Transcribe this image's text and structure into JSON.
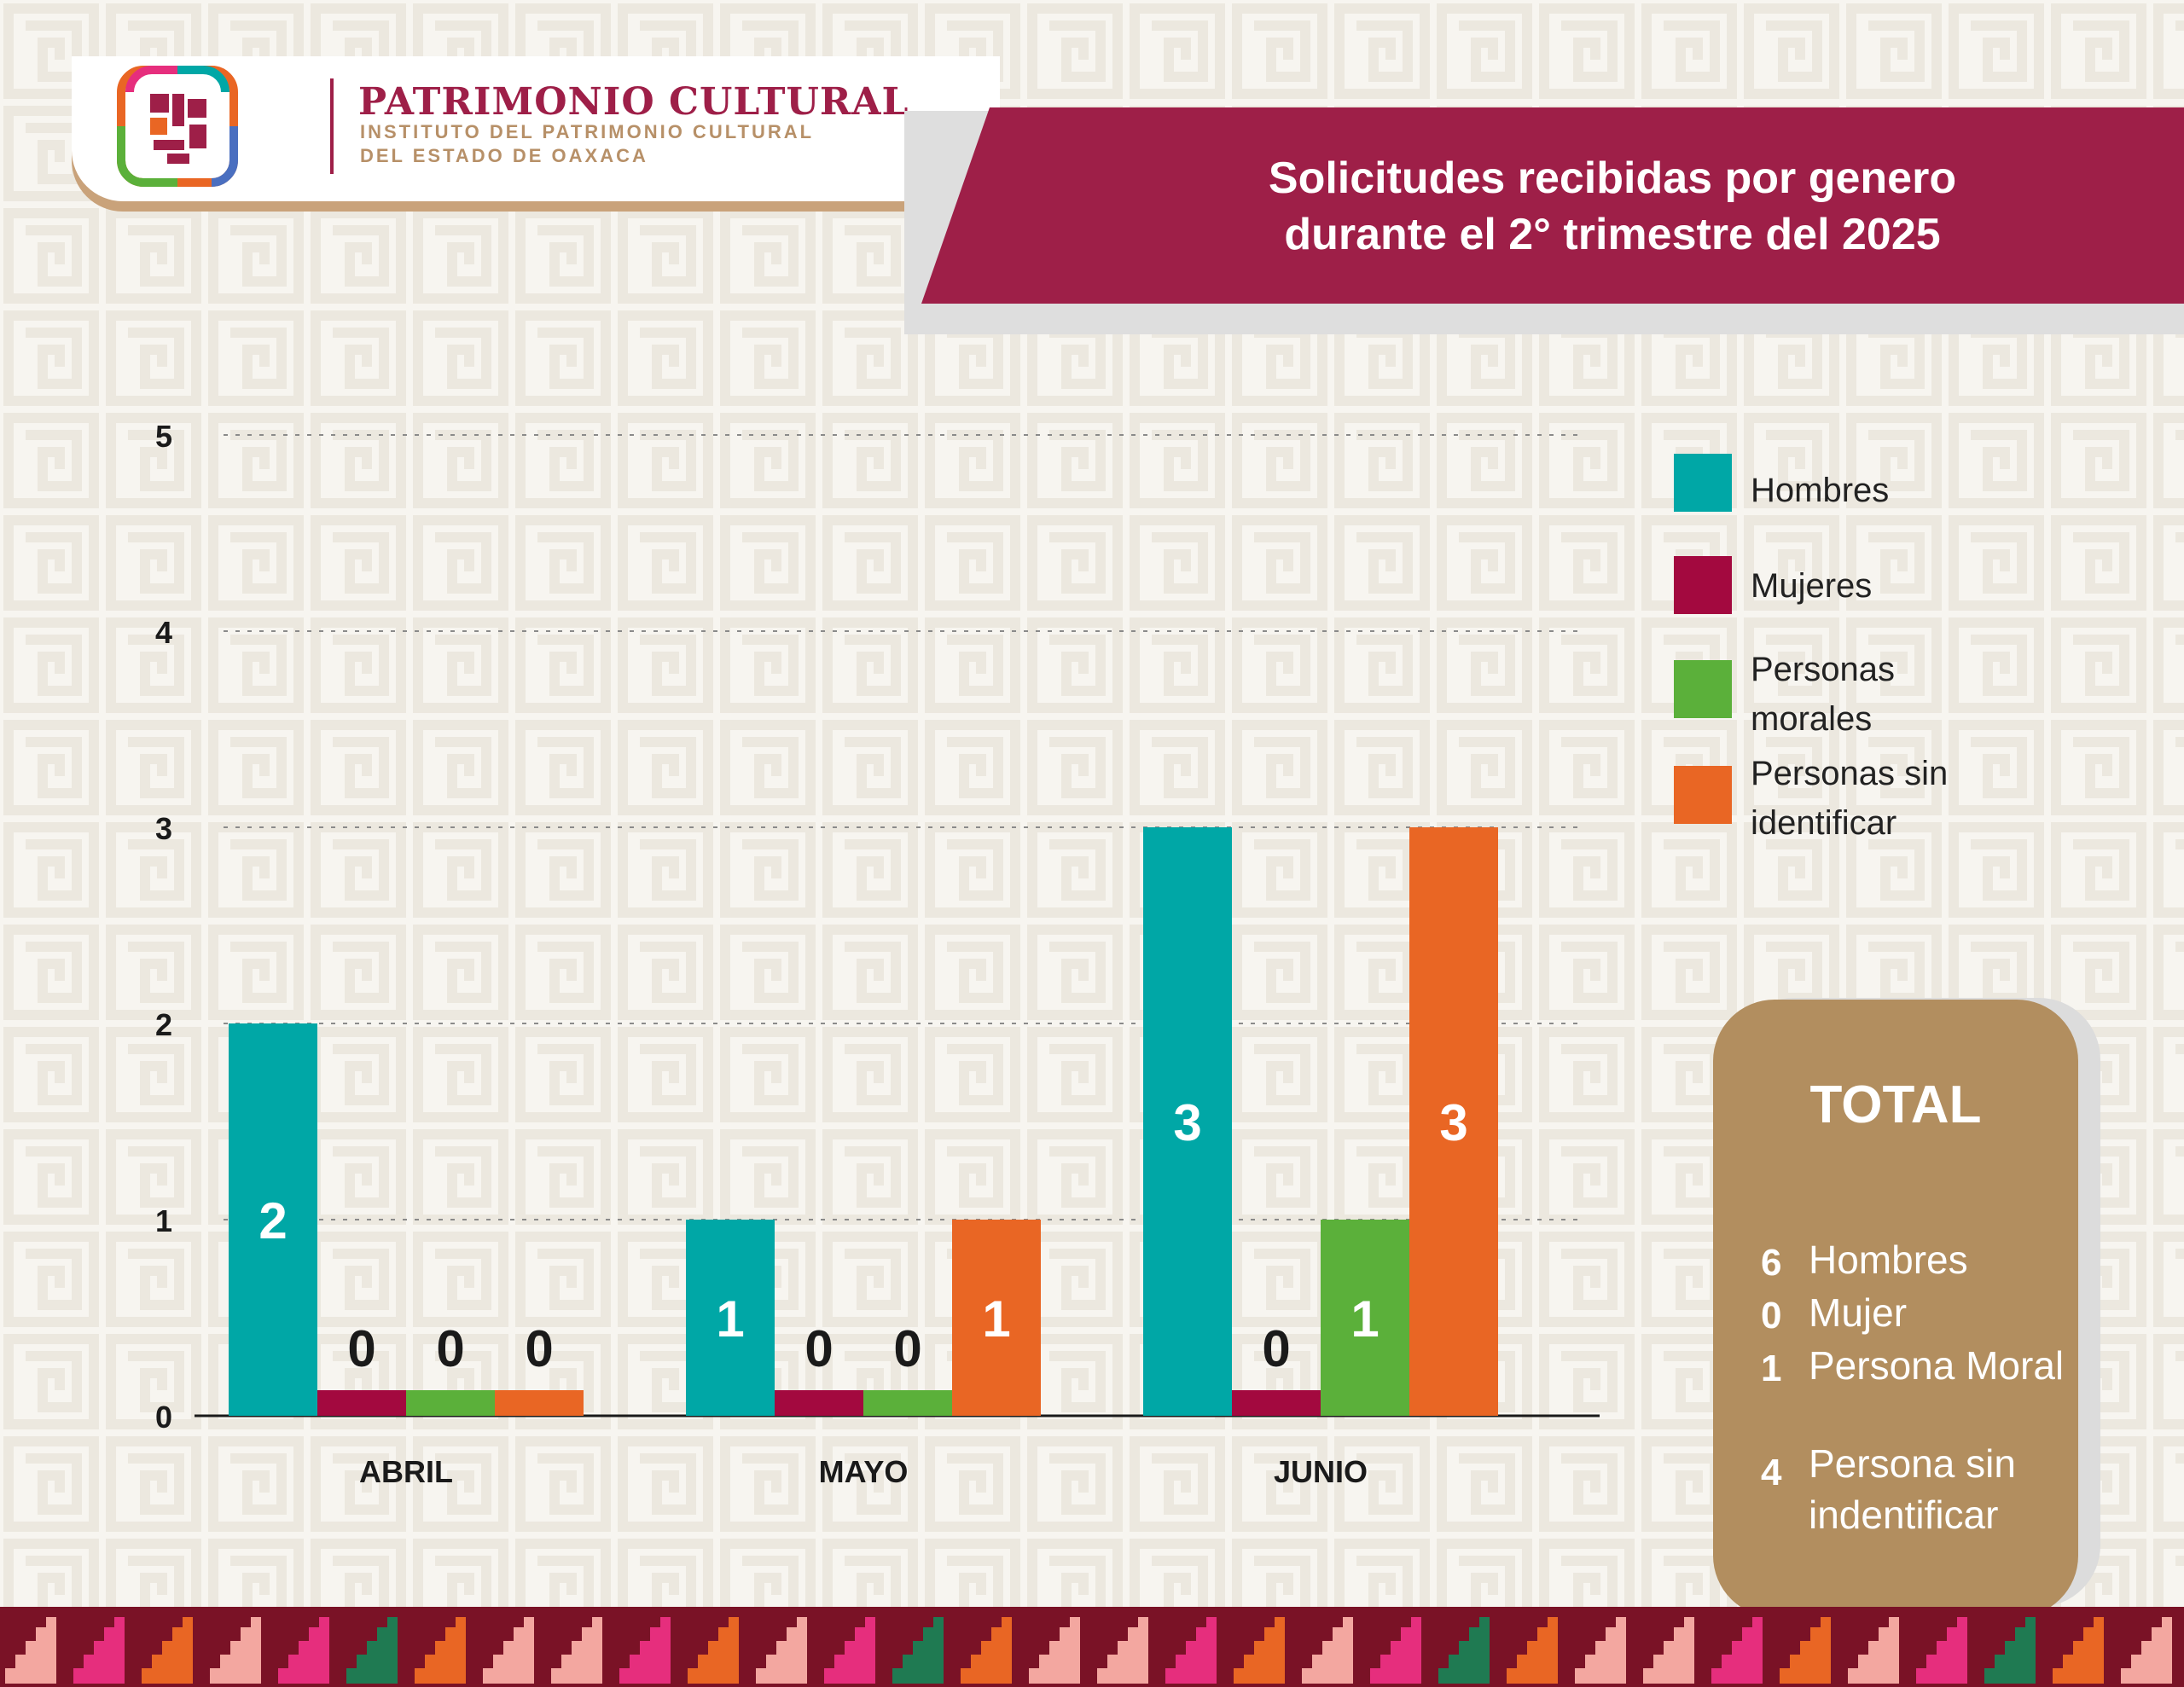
{
  "header": {
    "org_title": "PATRIMONIO CULTURAL",
    "org_subtitle_1": "INSTITUTO DEL PATRIMONIO CULTURAL",
    "org_subtitle_2": "DEL ESTADO DE OAXACA"
  },
  "banner": {
    "title_line1": "Solicitudes recibidas por genero",
    "title_line2": "durante el 2° trimestre del 2025"
  },
  "colors": {
    "hombres": "#00a7a6",
    "mujeres": "#a3093f",
    "personas_morales": "#5bb03a",
    "personas_sin_identificar": "#e96624",
    "banner": "#9e1f48",
    "total_card": "#b28e5f"
  },
  "chart_data": {
    "type": "bar",
    "title": "Solicitudes recibidas por genero durante el 2° trimestre del 2025",
    "categories": [
      "ABRIL",
      "MAYO",
      "JUNIO"
    ],
    "series": [
      {
        "name": "Hombres",
        "values": [
          2,
          1,
          3
        ],
        "color": "#00a7a6"
      },
      {
        "name": "Mujeres",
        "values": [
          0,
          0,
          0
        ],
        "color": "#a3093f"
      },
      {
        "name": "Personas morales",
        "values": [
          0,
          0,
          1
        ],
        "color": "#5bb03a"
      },
      {
        "name": "Personas sin identificar",
        "values": [
          0,
          1,
          3
        ],
        "color": "#e96624"
      }
    ],
    "ylim": [
      0,
      5
    ],
    "yticks": [
      "0",
      "1",
      "2",
      "3",
      "4",
      "5"
    ],
    "xlabel": "",
    "ylabel": "",
    "grid": true,
    "legend_position": "right"
  },
  "legend": {
    "items": [
      "Hombres",
      "Mujeres",
      "Personas morales",
      "Personas sin identificar"
    ]
  },
  "total": {
    "title": "TOTAL",
    "rows": [
      {
        "num": "6",
        "label": "Hombres"
      },
      {
        "num": "0",
        "label": "Mujer"
      },
      {
        "num": "1",
        "label": "Persona Moral"
      },
      {
        "num": "4",
        "label": "Persona sin indentificar"
      }
    ]
  }
}
